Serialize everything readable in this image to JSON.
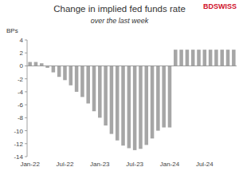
{
  "chart_data": {
    "type": "bar",
    "title": "Change in implied fed funds rate",
    "subtitle": "over the last week",
    "y_label": "BPs",
    "annotations": [
      "BDSWISS"
    ],
    "categories": [
      "Jan-22",
      null,
      null,
      null,
      null,
      null,
      "Jul-22",
      null,
      null,
      null,
      null,
      null,
      "Jan-23",
      null,
      null,
      null,
      null,
      null,
      "Jul-23",
      null,
      null,
      null,
      null,
      null,
      "Jan-24",
      null,
      null,
      null,
      null,
      null,
      "Jul-24",
      null,
      null,
      null,
      null,
      null
    ],
    "values": [
      0.6,
      0.6,
      0.4,
      -0.3,
      -1,
      -1.7,
      -2.2,
      -3,
      -4,
      -4.8,
      -5.8,
      -7,
      -8,
      -9.2,
      -10.5,
      -11.5,
      -12.3,
      -12.7,
      -13,
      -12.8,
      -12.2,
      -11.2,
      -10,
      -9.5,
      -9.5,
      2.5,
      2.5,
      2.5,
      2.5,
      2.5,
      2.5,
      2.5,
      2.5,
      2.5,
      2.5,
      2.5
    ],
    "color": "#a6a6a6",
    "ylim": [
      -14,
      4
    ],
    "yticks": [
      -14,
      -12,
      -10,
      -8,
      -6,
      -4,
      -2,
      0,
      2,
      4
    ],
    "grid": false
  }
}
